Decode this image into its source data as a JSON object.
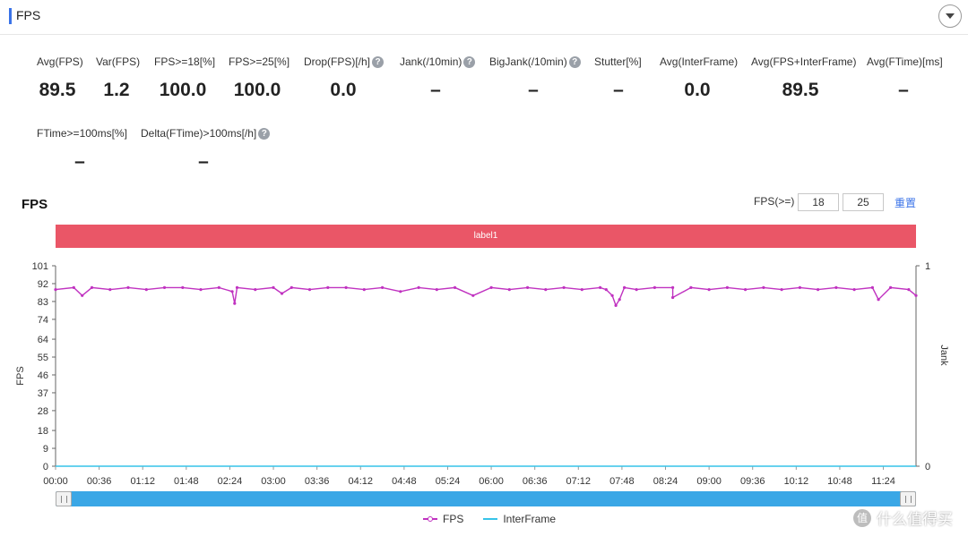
{
  "header": {
    "title": "FPS"
  },
  "metrics": [
    {
      "label": "Avg(FPS)",
      "value": "89.5",
      "help": false
    },
    {
      "label": "Var(FPS)",
      "value": "1.2",
      "help": false
    },
    {
      "label": "FPS>=18[%]",
      "value": "100.0",
      "help": false
    },
    {
      "label": "FPS>=25[%]",
      "value": "100.0",
      "help": false
    },
    {
      "label": "Drop(FPS)[/h]",
      "value": "0.0",
      "help": true
    },
    {
      "label": "Jank(/10min)",
      "value": "–",
      "help": true
    },
    {
      "label": "BigJank(/10min)",
      "value": "–",
      "help": true
    },
    {
      "label": "Stutter[%]",
      "value": "–",
      "help": false
    },
    {
      "label": "Avg(InterFrame)",
      "value": "0.0",
      "help": false
    },
    {
      "label": "Avg(FPS+InterFrame)",
      "value": "89.5",
      "help": false
    },
    {
      "label": "Avg(FTime)[ms]",
      "value": "–",
      "help": false
    },
    {
      "label": "FTime>=100ms[%]",
      "value": "–",
      "help": false
    },
    {
      "label": "Delta(FTime)>100ms[/h]",
      "value": "–",
      "help": true
    }
  ],
  "chart_section": {
    "title": "FPS",
    "threshold_label": "FPS(>=)",
    "threshold_1": "18",
    "threshold_2": "25",
    "reset_label": "重置",
    "band_label": "label1"
  },
  "colors": {
    "fps": "#c032c0",
    "interframe": "#37c3e8",
    "band": "#ea5667",
    "slider": "#3aa7e6",
    "accent": "#3a73e8"
  },
  "chart_data": {
    "type": "line",
    "title": "",
    "xlabel": "",
    "ylabel": "FPS",
    "y2label": "Jank",
    "ylim": [
      0,
      101
    ],
    "yticks": [
      0,
      9,
      18,
      28,
      37,
      46,
      55,
      64,
      74,
      83,
      92,
      101
    ],
    "y2lim": [
      0,
      1
    ],
    "y2ticks": [
      0,
      1
    ],
    "x_tick_labels": [
      "00:00",
      "00:36",
      "01:12",
      "01:48",
      "02:24",
      "03:00",
      "03:36",
      "04:12",
      "04:48",
      "05:24",
      "06:00",
      "06:36",
      "07:12",
      "07:48",
      "08:24",
      "09:00",
      "09:36",
      "10:12",
      "10:48",
      "11:24"
    ],
    "x_range_seconds": [
      0,
      711
    ],
    "grid": false,
    "legend_position": "bottom",
    "series": [
      {
        "name": "FPS",
        "x": [
          0,
          15,
          22,
          30,
          45,
          60,
          75,
          90,
          105,
          120,
          135,
          146,
          148,
          150,
          165,
          180,
          187,
          195,
          210,
          225,
          240,
          255,
          270,
          285,
          300,
          315,
          330,
          345,
          360,
          375,
          390,
          405,
          420,
          435,
          450,
          455,
          460,
          463,
          466,
          470,
          480,
          495,
          510,
          510,
          525,
          540,
          555,
          570,
          585,
          600,
          615,
          630,
          645,
          660,
          675,
          680,
          690,
          705,
          711
        ],
        "y": [
          89,
          90,
          86,
          90,
          89,
          90,
          89,
          90,
          90,
          89,
          90,
          88,
          82,
          90,
          89,
          90,
          87,
          90,
          89,
          90,
          90,
          89,
          90,
          88,
          90,
          89,
          90,
          86,
          90,
          89,
          90,
          89,
          90,
          89,
          90,
          89,
          86,
          81,
          84,
          90,
          89,
          90,
          90,
          85,
          90,
          89,
          90,
          89,
          90,
          89,
          90,
          89,
          90,
          89,
          90,
          84,
          90,
          89,
          86
        ]
      },
      {
        "name": "InterFrame",
        "x": [
          0,
          711
        ],
        "y": [
          0,
          0
        ]
      }
    ]
  },
  "slider": {
    "start_pct": 0,
    "end_pct": 100
  },
  "legend": {
    "fps": "FPS",
    "interframe": "InterFrame"
  },
  "watermark": {
    "badge": "值",
    "text": "什么值得买"
  }
}
